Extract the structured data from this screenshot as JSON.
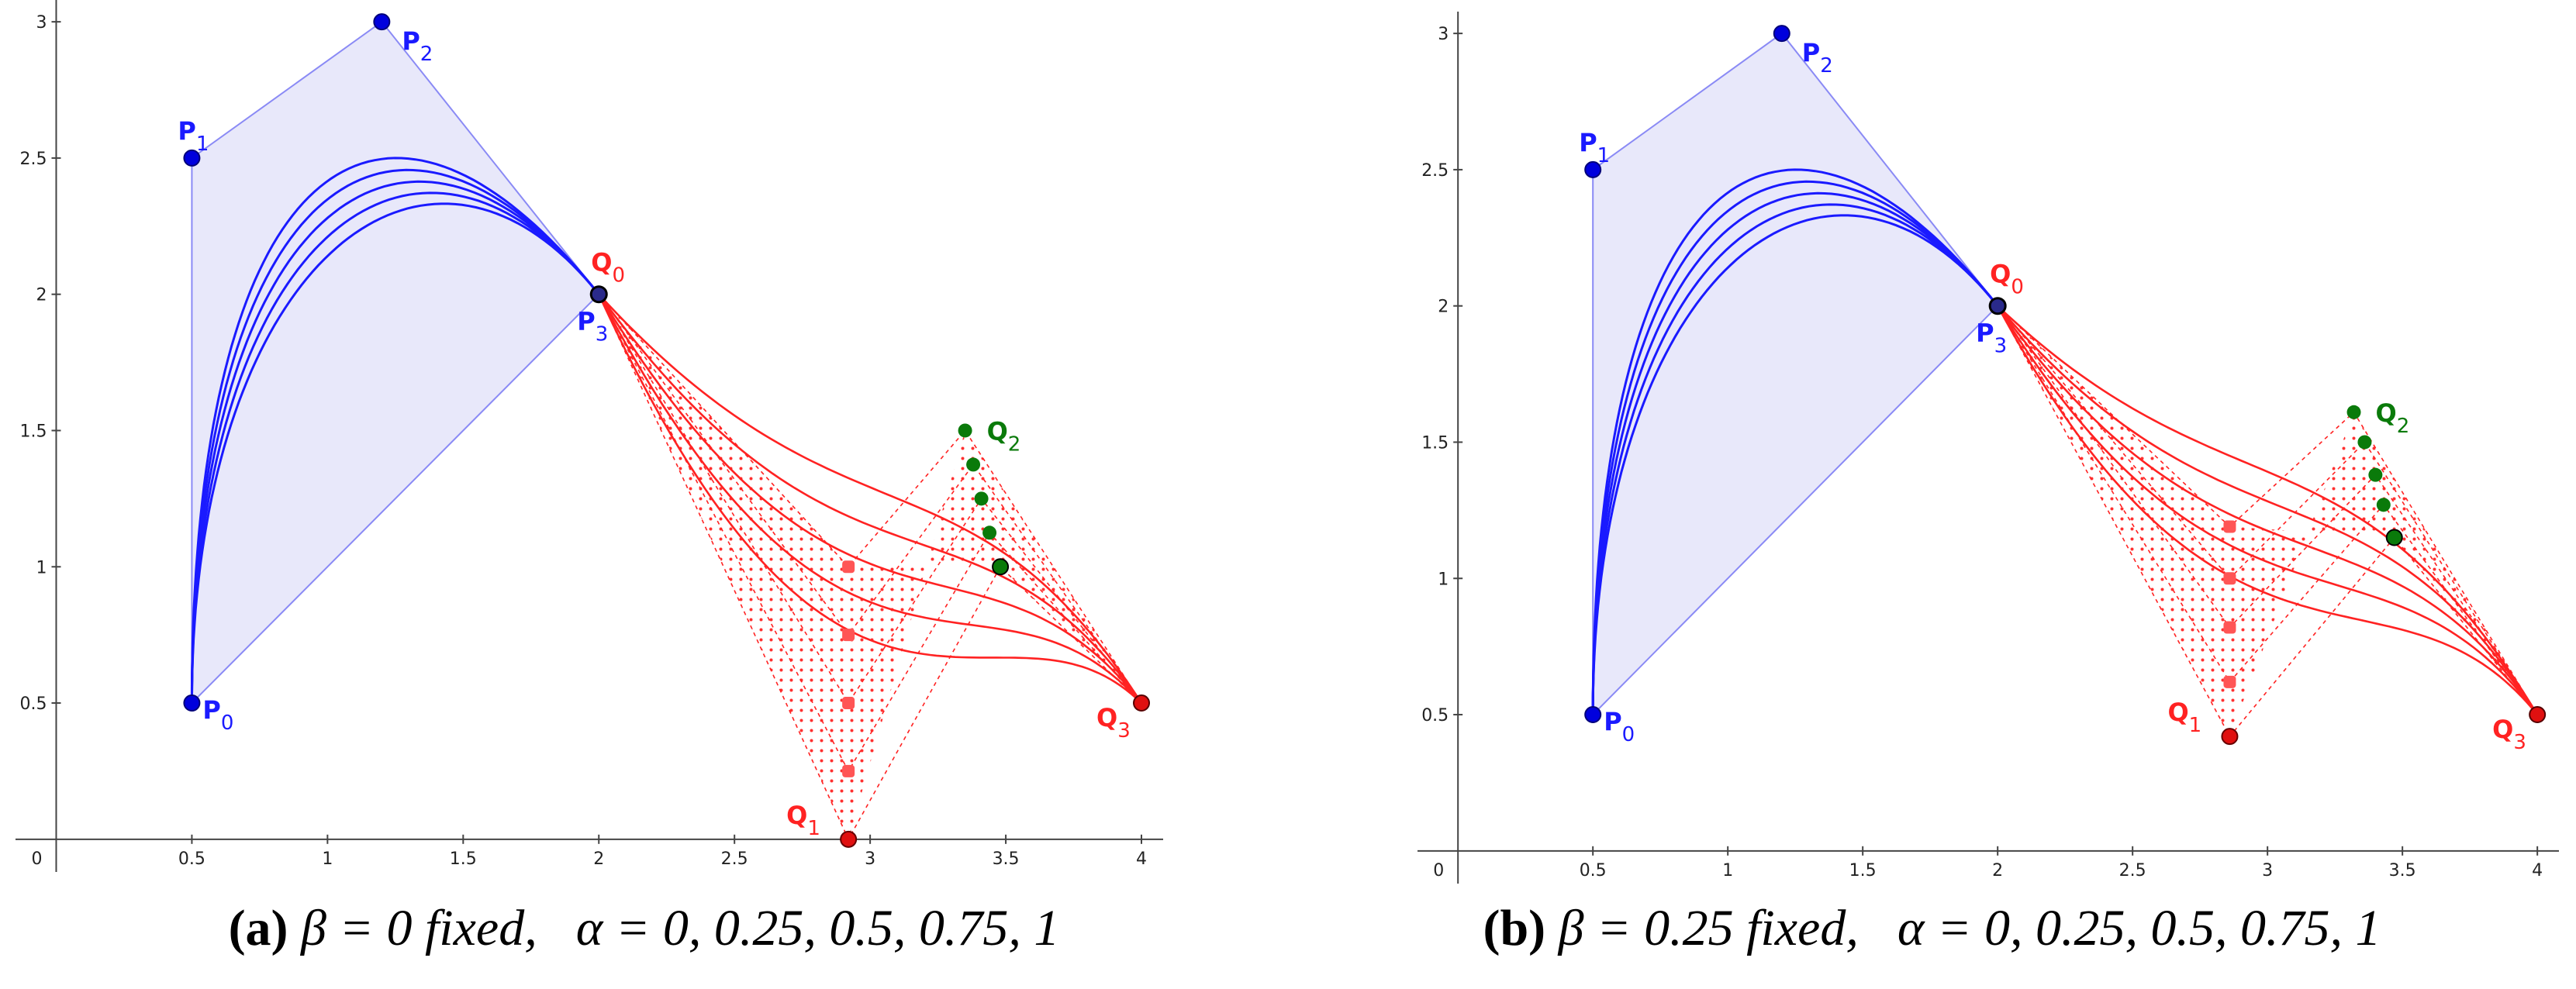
{
  "chart_data": [
    {
      "type": "line",
      "panel_label": "(a)",
      "caption": {
        "fixed": "β = 0 fixed,",
        "varying": "α = 0, 0.25, 0.5, 0.75, 1"
      },
      "x_ticks": [
        "0.5",
        "1",
        "1.5",
        "2",
        "2.5",
        "3",
        "3.5",
        "4"
      ],
      "y_ticks": [
        "0.5",
        "1",
        "1.5",
        "2",
        "2.5",
        "3"
      ],
      "origin_label": "0",
      "xlim": [
        -0.15,
        4.08
      ],
      "ylim": [
        -0.12,
        3.08
      ],
      "colors": {
        "blue": "#1a1aff",
        "blue_fill": "#e8e8fa",
        "red": "#ff2222",
        "red_point": "#ff5555",
        "green": "#0a7a0a"
      },
      "P": [
        [
          0.5,
          0.5
        ],
        [
          0.5,
          2.5
        ],
        [
          1.2,
          3.0
        ],
        [
          2.0,
          2.0
        ]
      ],
      "Q0": [
        2.0,
        2.0
      ],
      "Q3": [
        4.0,
        0.5
      ],
      "Q1_variants": [
        [
          2.92,
          0.0
        ],
        [
          2.92,
          0.25
        ],
        [
          2.92,
          0.5
        ],
        [
          2.92,
          0.75
        ],
        [
          2.92,
          1.0
        ]
      ],
      "Q2_variants": [
        [
          3.48,
          1.0
        ],
        [
          3.44,
          1.125
        ],
        [
          3.41,
          1.25
        ],
        [
          3.38,
          1.375
        ],
        [
          3.35,
          1.5
        ]
      ],
      "P_curve_scale": [
        1.0,
        0.95,
        0.9,
        0.85,
        0.8
      ],
      "point_labels": {
        "P0": "P0",
        "P1": "P1",
        "P2": "P2",
        "P3": "P3",
        "Q0": "Q0",
        "Q1": "Q1",
        "Q2": "Q2",
        "Q3": "Q3"
      }
    },
    {
      "type": "line",
      "panel_label": "(b)",
      "caption": {
        "fixed": "β = 0.25 fixed,",
        "varying": "α = 0, 0.25, 0.5, 0.75, 1"
      },
      "x_ticks": [
        "0.5",
        "1",
        "1.5",
        "2",
        "2.5",
        "3",
        "3.5",
        "4"
      ],
      "y_ticks": [
        "0.5",
        "1",
        "1.5",
        "2",
        "2.5",
        "3"
      ],
      "origin_label": "0",
      "xlim": [
        -0.15,
        4.08
      ],
      "ylim": [
        -0.12,
        3.08
      ],
      "colors": {
        "blue": "#1a1aff",
        "blue_fill": "#e8e8fa",
        "red": "#ff2222",
        "red_point": "#ff5555",
        "green": "#0a7a0a"
      },
      "P": [
        [
          0.5,
          0.5
        ],
        [
          0.5,
          2.5
        ],
        [
          1.2,
          3.0
        ],
        [
          2.0,
          2.0
        ]
      ],
      "Q0": [
        2.0,
        2.0
      ],
      "Q3": [
        4.0,
        0.5
      ],
      "Q1_variants": [
        [
          2.86,
          0.42
        ],
        [
          2.86,
          0.62
        ],
        [
          2.86,
          0.82
        ],
        [
          2.86,
          1.0
        ],
        [
          2.86,
          1.19
        ]
      ],
      "Q2_variants": [
        [
          3.47,
          1.15
        ],
        [
          3.43,
          1.27
        ],
        [
          3.4,
          1.38
        ],
        [
          3.36,
          1.5
        ],
        [
          3.32,
          1.61
        ]
      ],
      "P_curve_scale": [
        1.0,
        0.95,
        0.9,
        0.85,
        0.8
      ],
      "point_labels": {
        "P0": "P0",
        "P1": "P1",
        "P2": "P2",
        "P3": "P3",
        "Q0": "Q0",
        "Q1": "Q1",
        "Q2": "Q2",
        "Q3": "Q3"
      }
    }
  ]
}
